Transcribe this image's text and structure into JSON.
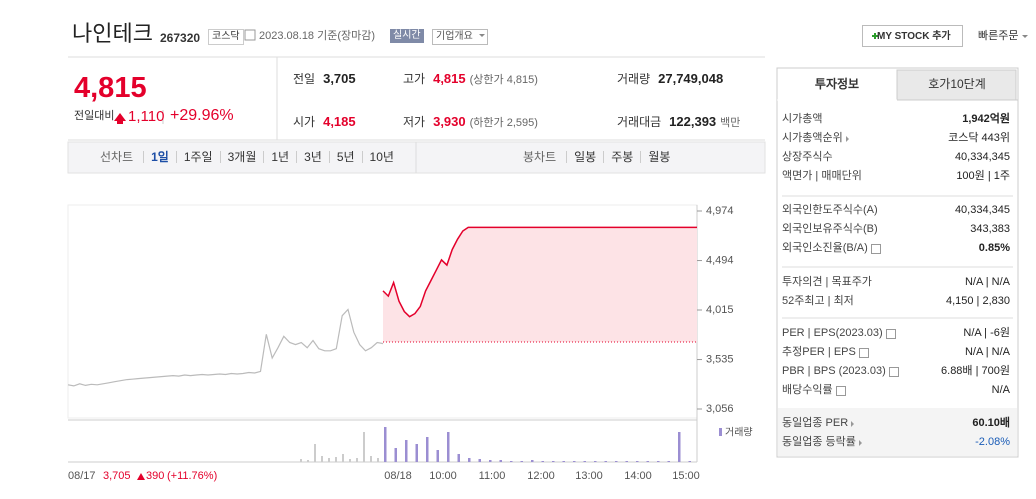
{
  "header": {
    "name": "나인테크",
    "code": "267320",
    "market": "코스닥",
    "date": "2023.08.18 기준(장마감)",
    "realtime": "실시간",
    "company": "기업개요",
    "mystock": "MY STOCK 추가",
    "quick_order": "빠른주문"
  },
  "price": {
    "current": "4,815",
    "change_label": "전일대비",
    "change": "1,110",
    "change_rate": "+29.96%",
    "color": "#e4002b"
  },
  "summary": [
    {
      "label": "전일",
      "value": "3,705"
    },
    {
      "label": "고가",
      "value": "4,815",
      "note": "(상한가 4,815)",
      "color": "#e4002b"
    },
    {
      "label": "거래량",
      "value": "27,749,048"
    },
    {
      "label": "시가",
      "value": "4,185",
      "color": "#e4002b"
    },
    {
      "label": "저가",
      "value": "3,930",
      "note": "(하한가 2,595)",
      "color": "#e4002b"
    },
    {
      "label": "거래대금",
      "value": "122,393",
      "note": "백만"
    }
  ],
  "tabs": {
    "line_label": "선차트",
    "line": [
      "1일",
      "1주일",
      "3개월",
      "1년",
      "3년",
      "5년",
      "10년"
    ],
    "candle_label": "봉차트",
    "candle": [
      "일봉",
      "주봉",
      "월봉"
    ]
  },
  "chart": {
    "ylim": [
      3056,
      4974
    ],
    "yticks": [
      {
        "value": 4974,
        "label": "4,974"
      },
      {
        "value": 4494,
        "label": "4,494"
      },
      {
        "value": 4015,
        "label": "4,015"
      },
      {
        "value": 3535,
        "label": "3,535"
      },
      {
        "value": 3056,
        "label": "3,056"
      }
    ],
    "baseline": 3705,
    "volume_label": "거래량",
    "prev_label": "08/17",
    "prev_close": "3,705",
    "prev_change": "390",
    "prev_rate": "(+11.76%)",
    "xlabels": [
      "08/18",
      "10:00",
      "11:00",
      "12:00",
      "13:00",
      "14:00",
      "15:00"
    ],
    "prev_day": [
      3290,
      3280,
      3300,
      3285,
      3295,
      3290,
      3300,
      3310,
      3320,
      3330,
      3340,
      3345,
      3350,
      3355,
      3360,
      3365,
      3370,
      3375,
      3380,
      3375,
      3385,
      3380,
      3385,
      3390,
      3385,
      3390,
      3395,
      3390,
      3400,
      3395,
      3400,
      3410,
      3405,
      3420,
      3780,
      3550,
      3650,
      3760,
      3700,
      3680,
      3700,
      3650,
      3720,
      3640,
      3620,
      3620,
      3640,
      3960,
      4020,
      3800,
      3680,
      3620,
      3650,
      3700,
      3690
    ],
    "today": [
      4200,
      4150,
      4280,
      4100,
      4000,
      3950,
      3980,
      4050,
      4200,
      4300,
      4400,
      4500,
      4450,
      4600,
      4700,
      4780,
      4815,
      4815,
      4815,
      4815,
      4815,
      4815,
      4815,
      4815,
      4815,
      4815,
      4815,
      4815,
      4815,
      4815,
      4815,
      4815,
      4815,
      4815,
      4815,
      4815,
      4815,
      4815,
      4815,
      4815,
      4815,
      4815,
      4815,
      4815,
      4815,
      4815,
      4815,
      4815,
      4815,
      4815,
      4815,
      4815,
      4815,
      4815,
      4815,
      4815,
      4815,
      4815,
      4815,
      4815
    ],
    "prev_volume": [
      3,
      2,
      18,
      6,
      4,
      5,
      8,
      3,
      4,
      30,
      6,
      4
    ],
    "today_volume": [
      35,
      14,
      22,
      18,
      25,
      12,
      30,
      8,
      4,
      3,
      2,
      2,
      1,
      1,
      2,
      1,
      1,
      1,
      1,
      1,
      1,
      1,
      1,
      1,
      1,
      1,
      1,
      1,
      30,
      1
    ]
  },
  "invest": {
    "tabs": [
      "투자정보",
      "호가10단계"
    ],
    "sections": [
      [
        {
          "label": "시가총액",
          "value": "1,942억원",
          "bold": true
        },
        {
          "label": "시가총액순위",
          "value": "코스닥 443위",
          "arrow": true
        },
        {
          "label": "상장주식수",
          "value": "40,334,345"
        },
        {
          "label": "액면가 | 매매단위",
          "value": "100원 | 1주"
        }
      ],
      [
        {
          "label": "외국인한도주식수(A)",
          "value": "40,334,345"
        },
        {
          "label": "외국인보유주식수(B)",
          "value": "343,383"
        },
        {
          "label": "외국인소진율(B/A)",
          "value": "0.85%",
          "bold": true,
          "help": true
        }
      ],
      [
        {
          "label": "투자의견 | 목표주가",
          "value": "N/A | N/A"
        },
        {
          "label": "52주최고 | 최저",
          "value": "4,150 | 2,830"
        }
      ],
      [
        {
          "label": "PER | EPS(2023.03)",
          "value": "N/A | -6원",
          "help": true
        },
        {
          "label": "추정PER | EPS",
          "value": "N/A | N/A",
          "help": true
        },
        {
          "label": "PBR | BPS (2023.03)",
          "value": "6.88배 | 700원",
          "help": true
        },
        {
          "label": "배당수익률",
          "value": "N/A",
          "help": true
        }
      ],
      [
        {
          "label": "동일업종 PER",
          "value": "60.10배",
          "bold": true,
          "arrow": true
        },
        {
          "label": "동일업종 등락률",
          "value": "-2.08%",
          "color": "#1a5cb7",
          "arrow": true
        }
      ]
    ]
  }
}
